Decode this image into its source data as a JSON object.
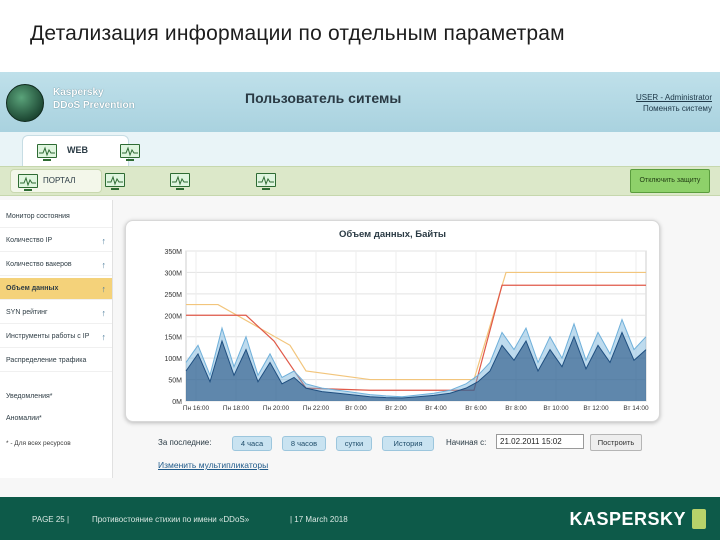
{
  "slide": {
    "title": "Детализация информации по отдельным параметрам"
  },
  "app": {
    "brand_line1": "Kaspersky",
    "brand_line2": "DDoS Prevention",
    "page_heading": "Пользователь ситемы",
    "user_label": "USER - Administrator",
    "change_system": "Поменять систему"
  },
  "tabs": {
    "web": "WEB",
    "portal": "ПОРТАЛ",
    "disable_protection": "Отключить защиту"
  },
  "menu": {
    "items": [
      {
        "label": "Монитор состояния",
        "arrow": ""
      },
      {
        "label": "Количество IP",
        "arrow": "↑"
      },
      {
        "label": "Количество вакеров",
        "arrow": "↑"
      },
      {
        "label": "Объем данных",
        "arrow": "↑"
      },
      {
        "label": "SYN рейтинг",
        "arrow": "↑"
      },
      {
        "label": "Инструменты работы с IP",
        "arrow": "↑"
      },
      {
        "label": "Распределение трафика",
        "arrow": ""
      },
      {
        "label": "Уведомления*",
        "arrow": ""
      },
      {
        "label": "Аномалии*",
        "arrow": ""
      }
    ],
    "active_index": 3,
    "footnote": "* - Для всех ресурсов"
  },
  "chart_data": {
    "type": "line",
    "title": "Объем данных, Байты",
    "xlabel": "",
    "ylabel": "",
    "ylim": [
      0,
      350
    ],
    "yticks": [
      "0M",
      "50M",
      "100M",
      "150M",
      "200M",
      "250M",
      "300M",
      "350M"
    ],
    "xticks": [
      "Пн 16:00",
      "Пн 18:00",
      "Пн 20:00",
      "Пн 22:00",
      "Вт 0:00",
      "Вт 2:00",
      "Вт 4:00",
      "Вт 6:00",
      "Вт 8:00",
      "Вт 10:00",
      "Вт 12:00",
      "Вт 14:00"
    ],
    "grid": true,
    "series": [
      {
        "color": "#f2c57c",
        "x": [
          0,
          0.8,
          2.6,
          3.0,
          4.6,
          7.2,
          8.0,
          11.5
        ],
        "values": [
          225,
          225,
          130,
          70,
          50,
          50,
          300,
          300
        ]
      },
      {
        "color": "#e05a4a",
        "x": [
          0,
          1.5,
          2.2,
          3.0,
          4.6,
          7.2,
          7.9,
          11.5
        ],
        "values": [
          200,
          200,
          140,
          30,
          25,
          25,
          270,
          270
        ]
      },
      {
        "color": "#6fb0da",
        "x": [
          0,
          0.3,
          0.6,
          0.9,
          1.2,
          1.5,
          1.8,
          2.1,
          2.4,
          2.7,
          3.0,
          3.4,
          3.8,
          4.2,
          4.6,
          5.0,
          5.4,
          5.8,
          6.2,
          6.6,
          7.0,
          7.3,
          7.6,
          7.9,
          8.2,
          8.5,
          8.8,
          9.1,
          9.4,
          9.7,
          10.0,
          10.3,
          10.6,
          10.9,
          11.2,
          11.5
        ],
        "values": [
          90,
          130,
          60,
          170,
          80,
          150,
          60,
          110,
          55,
          70,
          40,
          30,
          25,
          20,
          15,
          12,
          10,
          14,
          18,
          25,
          40,
          60,
          90,
          160,
          120,
          170,
          90,
          150,
          100,
          180,
          95,
          160,
          110,
          190,
          120,
          150
        ]
      },
      {
        "color": "#1f4f80",
        "x": [
          0,
          0.3,
          0.6,
          0.9,
          1.2,
          1.5,
          1.8,
          2.1,
          2.4,
          2.7,
          3.0,
          3.4,
          3.8,
          4.2,
          4.6,
          5.0,
          5.4,
          5.8,
          6.2,
          6.6,
          7.0,
          7.3,
          7.6,
          7.9,
          8.2,
          8.5,
          8.8,
          9.1,
          9.4,
          9.7,
          10.0,
          10.3,
          10.6,
          10.9,
          11.2,
          11.5
        ],
        "values": [
          70,
          110,
          45,
          140,
          60,
          120,
          45,
          90,
          40,
          55,
          30,
          22,
          18,
          14,
          10,
          8,
          7,
          10,
          13,
          18,
          30,
          45,
          70,
          130,
          95,
          140,
          70,
          120,
          80,
          150,
          75,
          130,
          90,
          160,
          95,
          120
        ]
      }
    ]
  },
  "controls": {
    "for_last": "За последние:",
    "ranges": [
      "4 часа",
      "8 часов",
      "сутки",
      "История"
    ],
    "start_label": "Начиная с:",
    "start_value": "21.02.2011 15:02",
    "build": "Построить",
    "change_multipliers": "Изменить мультипликаторы"
  },
  "footer": {
    "page": "PAGE 25 |",
    "subtitle": "Противостояние стихии по имени «DDoS»",
    "date": "| 17 March 2018",
    "brand": "KASPERSKY"
  }
}
